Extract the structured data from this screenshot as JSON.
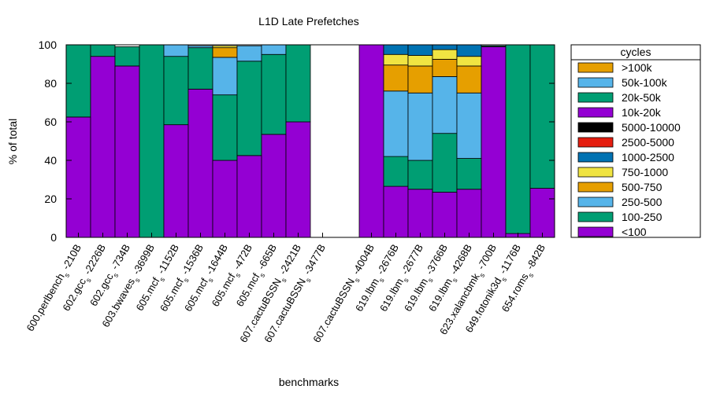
{
  "chart_data": {
    "type": "bar",
    "stacked": true,
    "title": "L1D Late Prefetches",
    "xlabel": "benchmarks",
    "ylabel": "% of total",
    "ylim": [
      0,
      100
    ],
    "yticks": [
      "0",
      "20",
      "40",
      "60",
      "80",
      "100"
    ],
    "legend": {
      "title": "cycles",
      "position": "right"
    },
    "categories": [
      {
        "base": "600.perlbench",
        "sub": "s",
        "suffix": " -210B"
      },
      {
        "base": "602.gcc",
        "sub": "s",
        "suffix": " -2226B"
      },
      {
        "base": "602.gcc",
        "sub": "s",
        "suffix": " -734B"
      },
      {
        "base": "603.bwaves",
        "sub": "s",
        "suffix": " -3699B"
      },
      {
        "base": "605.mcf",
        "sub": "s",
        "suffix": " -1152B"
      },
      {
        "base": "605.mcf",
        "sub": "s",
        "suffix": " -1536B"
      },
      {
        "base": "605.mcf",
        "sub": "s",
        "suffix": " -1644B"
      },
      {
        "base": "605.mcf",
        "sub": "s",
        "suffix": " -472B"
      },
      {
        "base": "605.mcf",
        "sub": "s",
        "suffix": " -665B"
      },
      {
        "base": "607.cactuBSSN",
        "sub": "s",
        "suffix": " -2421B"
      },
      {
        "base": "607.cactuBSSN",
        "sub": "s",
        "suffix": " -3477B"
      },
      {
        "base": "607.cactuBSSN",
        "sub": "s",
        "suffix": " -4004B"
      },
      {
        "base": "619.lbm",
        "sub": "s",
        "suffix": " -2676B"
      },
      {
        "base": "619.lbm",
        "sub": "s",
        "suffix": " -2677B"
      },
      {
        "base": "619.lbm",
        "sub": "s",
        "suffix": " -3766B"
      },
      {
        "base": "619.lbm",
        "sub": "s",
        "suffix": " -4268B"
      },
      {
        "base": "623.xalancbmk",
        "sub": "s",
        "suffix": " -700B"
      },
      {
        "base": "649.fotonik3d",
        "sub": "s",
        "suffix": " -1176B"
      },
      {
        "base": "654.roms",
        "sub": "s",
        "suffix": " -842B"
      }
    ],
    "series": [
      {
        "name": "<100",
        "color": "#9400d3",
        "values": [
          62.5,
          94,
          89,
          0,
          58.5,
          77,
          40,
          42.5,
          53.5,
          60,
          0,
          100,
          26.5,
          25,
          23.5,
          25,
          99,
          2,
          25.5
        ]
      },
      {
        "name": "100-250",
        "color": "#009e73",
        "values": [
          37.5,
          6,
          10,
          100,
          35.5,
          21.5,
          34,
          49,
          41.5,
          40,
          0,
          0,
          15.5,
          15,
          30.5,
          16,
          0.5,
          98,
          74.5
        ]
      },
      {
        "name": "250-500",
        "color": "#56b4e9",
        "values": [
          0,
          0,
          0,
          0,
          6,
          1,
          19.5,
          8,
          5,
          0,
          0,
          0,
          34,
          35,
          29.5,
          34,
          0,
          0,
          0
        ]
      },
      {
        "name": "500-750",
        "color": "#e69f00",
        "values": [
          0,
          0,
          0,
          0,
          0,
          0,
          5,
          0,
          0,
          0,
          0,
          0,
          13.5,
          14,
          9,
          14,
          0,
          0,
          0
        ]
      },
      {
        "name": "750-1000",
        "color": "#f0e442",
        "values": [
          0,
          0,
          0,
          0,
          0,
          0,
          1,
          0,
          0,
          0,
          0,
          0,
          5.5,
          5.5,
          5,
          5,
          0,
          0,
          0
        ]
      },
      {
        "name": "1000-2500",
        "color": "#0072b2",
        "values": [
          0,
          0,
          0,
          0,
          0,
          0,
          0,
          0,
          0,
          0,
          0,
          0,
          5,
          5.5,
          2.5,
          6,
          0,
          0,
          0
        ]
      },
      {
        "name": "2500-5000",
        "color": "#e51e10",
        "values": [
          0,
          0,
          0,
          0,
          0,
          0,
          0,
          0,
          0,
          0,
          0,
          0,
          0,
          0,
          0,
          0,
          0,
          0,
          0
        ]
      },
      {
        "name": "5000-10000",
        "color": "#000000",
        "values": [
          0,
          0,
          0,
          0,
          0,
          0,
          0,
          0,
          0,
          0,
          0,
          0,
          0,
          0,
          0,
          0,
          0,
          0,
          0
        ]
      },
      {
        "name": "10k-20k",
        "color": "#9400d3",
        "values": [
          0,
          0,
          0,
          0,
          0,
          0,
          0,
          0,
          0,
          0,
          0,
          0,
          0,
          0,
          0,
          0,
          0,
          0,
          0
        ]
      },
      {
        "name": "20k-50k",
        "color": "#009e73",
        "values": [
          0,
          0,
          0,
          0,
          0,
          0,
          0,
          0,
          0,
          0,
          0,
          0,
          0,
          0,
          0,
          0,
          0,
          0,
          0
        ]
      },
      {
        "name": "50k-100k",
        "color": "#56b4e9",
        "values": [
          0,
          0,
          0,
          0,
          0,
          0,
          0,
          0,
          0,
          0,
          0,
          0,
          0,
          0,
          0,
          0,
          0,
          0,
          0
        ]
      },
      {
        "name": ">100k",
        "color": "#e69f00",
        "values": [
          0,
          0,
          0,
          0,
          0,
          0,
          0,
          0,
          0,
          0,
          0,
          0,
          0,
          0,
          0,
          0,
          0,
          0,
          0
        ]
      }
    ]
  }
}
